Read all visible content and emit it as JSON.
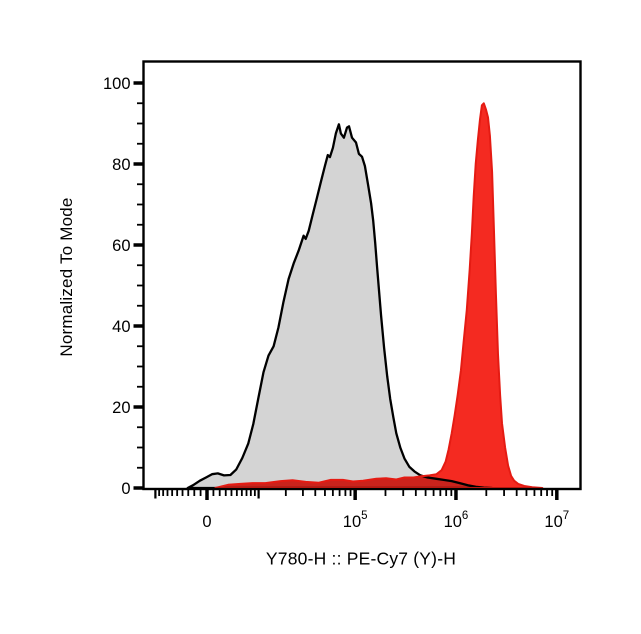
{
  "figure": {
    "background": "#ffffff",
    "frame_color": "#000000"
  },
  "chart_data": {
    "type": "area",
    "subtype": "flow-cytometry-histogram-overlay",
    "title": "",
    "xlabel": "Y780-H :: PE-Cy7 (Y)-H",
    "ylabel": "Normalized To Mode",
    "grid": false,
    "legend": "none",
    "x_axis": {
      "scale": "biexponential",
      "range": [
        -13800,
        18000000
      ],
      "ticks_major": [
        {
          "value": 0,
          "label": "0",
          "superscript": ""
        },
        {
          "value": 100000,
          "label": "10",
          "superscript": "5"
        },
        {
          "value": 1000000,
          "label": "10",
          "superscript": "6"
        },
        {
          "value": 10000000,
          "label": "10",
          "superscript": "7"
        }
      ],
      "ticks_medium": [
        -10000,
        10000
      ]
    },
    "y_axis": {
      "ticks": [
        0,
        20,
        40,
        60,
        80,
        100
      ],
      "minor_step": 5,
      "range": [
        0,
        106
      ]
    },
    "series": [
      {
        "name": "gray_histogram",
        "fill": "#d4d4d4",
        "stroke": "#000000",
        "stroke_width": 2.3,
        "blend": "normal",
        "points": [
          [
            -3100,
            0
          ],
          [
            -2200,
            0.7
          ],
          [
            -1100,
            1.8
          ],
          [
            -160,
            2.6
          ],
          [
            780,
            3.4
          ],
          [
            1700,
            3.6
          ],
          [
            2700,
            3.1
          ],
          [
            3800,
            3.2
          ],
          [
            4900,
            4.6
          ],
          [
            6100,
            7.4
          ],
          [
            7400,
            11
          ],
          [
            8600,
            15.8
          ],
          [
            9900,
            22
          ],
          [
            11400,
            28.6
          ],
          [
            13000,
            32.7
          ],
          [
            14800,
            35
          ],
          [
            16700,
            39.6
          ],
          [
            18900,
            46
          ],
          [
            21400,
            51.6
          ],
          [
            24100,
            55.4
          ],
          [
            27100,
            58.6
          ],
          [
            30500,
            62.3
          ],
          [
            32000,
            61.5
          ],
          [
            34300,
            63.5
          ],
          [
            37700,
            67.5
          ],
          [
            41400,
            71.5
          ],
          [
            45400,
            75.5
          ],
          [
            49800,
            79.4
          ],
          [
            53400,
            82.2
          ],
          [
            56000,
            81.7
          ],
          [
            60000,
            84
          ],
          [
            64300,
            87.6
          ],
          [
            68900,
            89.8
          ],
          [
            72200,
            87.5
          ],
          [
            77300,
            86.5
          ],
          [
            82900,
            89
          ],
          [
            86800,
            89.3
          ],
          [
            93000,
            86.5
          ],
          [
            102000,
            85.3
          ],
          [
            109000,
            82.5
          ],
          [
            117000,
            81.8
          ],
          [
            125000,
            79.5
          ],
          [
            134000,
            75
          ],
          [
            144000,
            70.3
          ],
          [
            151000,
            66
          ],
          [
            158000,
            60.5
          ],
          [
            165000,
            54.5
          ],
          [
            173000,
            48.5
          ],
          [
            181000,
            42.5
          ],
          [
            194000,
            34.6
          ],
          [
            208000,
            27.6
          ],
          [
            223000,
            22
          ],
          [
            239000,
            17.5
          ],
          [
            256000,
            13.5
          ],
          [
            281000,
            9.9
          ],
          [
            308000,
            7.3
          ],
          [
            345000,
            5.2
          ],
          [
            387000,
            4.1
          ],
          [
            445000,
            3.1
          ],
          [
            522000,
            2.6
          ],
          [
            628000,
            2.3
          ],
          [
            755000,
            2.0
          ],
          [
            907000,
            1.7
          ],
          [
            1090000,
            1.2
          ],
          [
            1310000,
            0.7
          ],
          [
            1570000,
            0.3
          ],
          [
            1890000,
            0.1
          ],
          [
            2280000,
            0
          ]
        ]
      },
      {
        "name": "red_histogram",
        "fill": "#f42a21",
        "stroke": "#e51b13",
        "stroke_width": 2,
        "blend": "multiply",
        "points": [
          [
            1300,
            0
          ],
          [
            3400,
            0.8
          ],
          [
            5700,
            1.0
          ],
          [
            8400,
            1.2
          ],
          [
            12000,
            1.2
          ],
          [
            17600,
            1.7
          ],
          [
            23500,
            1.9
          ],
          [
            32000,
            1.5
          ],
          [
            43400,
            1.3
          ],
          [
            57300,
            2.0
          ],
          [
            75600,
            2.0
          ],
          [
            95200,
            1.6
          ],
          [
            120000,
            1.8
          ],
          [
            162000,
            2.3
          ],
          [
            203000,
            2.4
          ],
          [
            256000,
            2.1
          ],
          [
            308000,
            2.6
          ],
          [
            379000,
            2.6
          ],
          [
            455000,
            2.9
          ],
          [
            547000,
            3.1
          ],
          [
            642000,
            3.4
          ],
          [
            721000,
            4.4
          ],
          [
            790000,
            6.5
          ],
          [
            846000,
            9.5
          ],
          [
            907000,
            13.5
          ],
          [
            972000,
            18
          ],
          [
            1040000,
            23
          ],
          [
            1120000,
            29
          ],
          [
            1190000,
            36
          ],
          [
            1280000,
            44
          ],
          [
            1370000,
            54
          ],
          [
            1440000,
            63
          ],
          [
            1500000,
            72
          ],
          [
            1570000,
            80
          ],
          [
            1650000,
            86
          ],
          [
            1730000,
            91
          ],
          [
            1810000,
            94.5
          ],
          [
            1890000,
            95
          ],
          [
            1980000,
            93.5
          ],
          [
            2080000,
            91.5
          ],
          [
            2170000,
            87
          ],
          [
            2280000,
            78
          ],
          [
            2380000,
            64
          ],
          [
            2490000,
            48
          ],
          [
            2610000,
            33
          ],
          [
            2740000,
            23
          ],
          [
            2860000,
            16
          ],
          [
            3070000,
            10
          ],
          [
            3290000,
            5.5
          ],
          [
            3520000,
            3
          ],
          [
            3770000,
            1.8
          ],
          [
            4140000,
            1.0
          ],
          [
            4750000,
            0.5
          ],
          [
            5710000,
            0.2
          ],
          [
            7180000,
            0
          ]
        ]
      }
    ]
  }
}
